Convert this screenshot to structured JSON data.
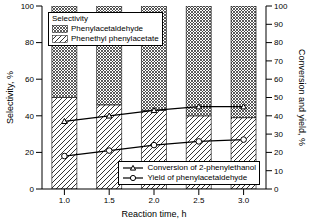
{
  "chart_data": {
    "type": "bar",
    "xlabel": "Reaction time, h",
    "ylabel": "Selectivity, %",
    "y2label": "Conversion and yield, %",
    "annotations": [
      {
        "text": "Selectivity"
      }
    ],
    "categories": [
      "1.0",
      "1.5",
      "2.0",
      "2.5",
      "3.0"
    ],
    "stacked": true,
    "ylim": [
      0,
      100
    ],
    "yticks": [
      0,
      20,
      40,
      60,
      80,
      100
    ],
    "y2lim": [
      0,
      100
    ],
    "y2ticks": [
      0,
      10,
      20,
      30,
      40,
      50,
      60,
      70,
      80,
      90,
      100
    ],
    "series": [
      {
        "name": "Phenylacetaldehyde",
        "type": "bar",
        "color": "#333333",
        "values": [
          50,
          54,
          57,
          60,
          61
        ]
      },
      {
        "name": "Phenethyl phenylacetate",
        "type": "bar",
        "color": "#000000",
        "values": [
          50,
          46,
          43,
          40,
          39
        ]
      },
      {
        "name": "Conversion of 2-phenylethanol",
        "type": "line",
        "axis": "y2",
        "color": "#000000",
        "marker": "triangle",
        "line_style": "solid",
        "values": [
          37,
          40,
          43,
          45,
          45
        ]
      },
      {
        "name": "Yield of phenylacetaldehyde",
        "type": "line",
        "axis": "y2",
        "color": "#000000",
        "marker": "circle",
        "line_style": "solid",
        "values": [
          18,
          21,
          24,
          26,
          27
        ]
      }
    ]
  }
}
